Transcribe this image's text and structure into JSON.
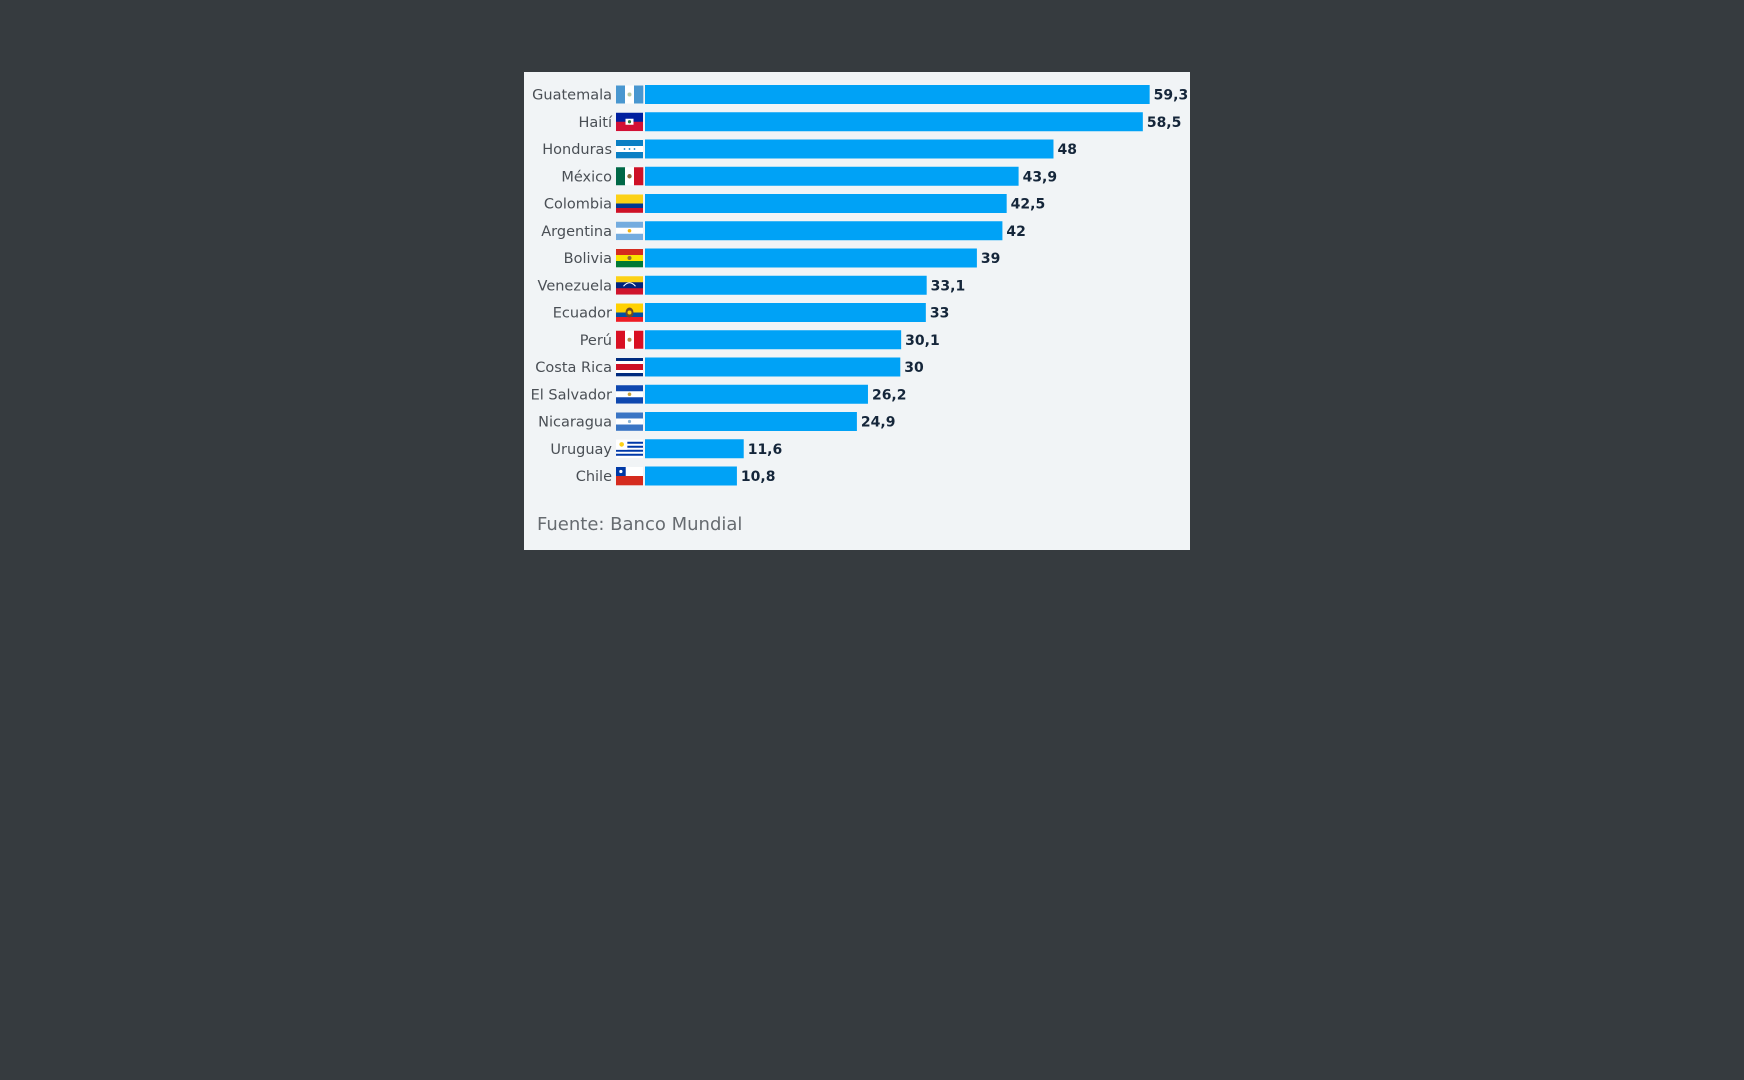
{
  "chart_data": {
    "type": "bar",
    "orientation": "horizontal",
    "categories": [
      "Guatemala",
      "Haití",
      "Honduras",
      "México",
      "Colombia",
      "Argentina",
      "Bolivia",
      "Venezuela",
      "Ecuador",
      "Perú",
      "Costa Rica",
      "El Salvador",
      "Nicaragua",
      "Uruguay",
      "Chile"
    ],
    "values": [
      59.3,
      58.5,
      48,
      43.9,
      42.5,
      42,
      39,
      33.1,
      33,
      30.1,
      30,
      26.2,
      24.9,
      11.6,
      10.8
    ],
    "value_labels": [
      "59,3",
      "58,5",
      "48",
      "43,9",
      "42,5",
      "42",
      "39",
      "33,1",
      "33",
      "30,1",
      "30",
      "26,2",
      "24,9",
      "11,6",
      "10,8"
    ],
    "flag_icons": [
      "guatemala-flag-icon",
      "haiti-flag-icon",
      "honduras-flag-icon",
      "mexico-flag-icon",
      "colombia-flag-icon",
      "argentina-flag-icon",
      "bolivia-flag-icon",
      "venezuela-flag-icon",
      "ecuador-flag-icon",
      "peru-flag-icon",
      "costa-rica-flag-icon",
      "el-salvador-flag-icon",
      "nicaragua-flag-icon",
      "uruguay-flag-icon",
      "chile-flag-icon"
    ],
    "xlim": [
      0,
      60
    ],
    "grid": false,
    "legend": "none",
    "bar_color": "#00a2f6",
    "source": "Fuente: Banco Mundial"
  }
}
